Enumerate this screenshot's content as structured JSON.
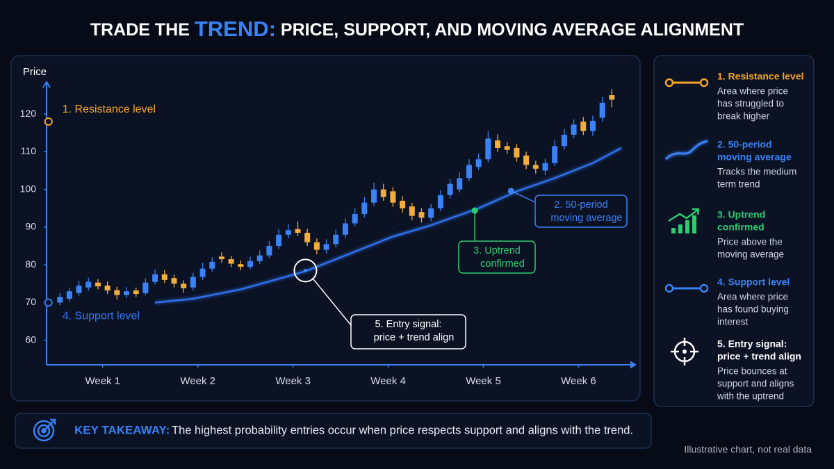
{
  "title": {
    "parts": [
      "TRADE THE ",
      "TREND:",
      " PRICE, SUPPORT, AND MOVING AVERAGE ALIGNMENT"
    ]
  },
  "chart_data": {
    "type": "candlestick",
    "y_label": "Price",
    "x": [
      1,
      2,
      3,
      4,
      5,
      6,
      7,
      8,
      9,
      10,
      11,
      12,
      13,
      14,
      15,
      16,
      17,
      18,
      19,
      20,
      21,
      22,
      23,
      24,
      25,
      26,
      27,
      28,
      29,
      30,
      31,
      32,
      33,
      34,
      35,
      36,
      37,
      38,
      39,
      40,
      41,
      42,
      43,
      44,
      45,
      46,
      47,
      48,
      49,
      50,
      51,
      52,
      53,
      54,
      55,
      56,
      57,
      58,
      59
    ],
    "open": [
      70,
      71,
      72.5,
      74,
      75.3,
      74.5,
      73.3,
      72,
      73.2,
      72.5,
      75.5,
      77.5,
      76.5,
      75,
      74,
      76.8,
      79,
      82.2,
      81.5,
      80.2,
      79.5,
      81,
      82.5,
      85,
      88,
      89.5,
      88.5,
      86,
      84,
      85.5,
      88,
      91,
      93.5,
      96.5,
      100,
      99.5,
      97,
      95.5,
      94,
      92.5,
      95,
      98.5,
      100,
      103,
      106,
      108,
      113,
      111.5,
      111,
      109,
      106.5,
      105,
      107,
      111.5,
      114.5,
      118,
      115.5,
      119,
      125
    ],
    "high": [
      72.5,
      74,
      75.8,
      76.6,
      76.2,
      75.6,
      74.2,
      74.1,
      74,
      76.4,
      78.8,
      78.6,
      77.4,
      75.9,
      77.9,
      80.6,
      82,
      83.3,
      82.4,
      81.2,
      82.2,
      83.8,
      86.3,
      89.5,
      90.8,
      91.5,
      89.6,
      87,
      86.8,
      89.4,
      92.3,
      95,
      98,
      101.8,
      101.5,
      100.6,
      98.2,
      96.4,
      95,
      96.2,
      99.8,
      102.8,
      104.5,
      108,
      109.5,
      115.4,
      114.6,
      112.6,
      112,
      110,
      107.6,
      108.2,
      113,
      116,
      118.6,
      119.2,
      119.6,
      124.5,
      126.6
    ],
    "low": [
      69.3,
      70.2,
      71.8,
      73.2,
      73.5,
      72.3,
      70.8,
      71.2,
      71.5,
      71.9,
      74.8,
      75.2,
      74,
      72.6,
      73.2,
      76,
      78.2,
      80.6,
      79.4,
      78.6,
      78.8,
      80.2,
      81.8,
      84.2,
      87,
      87.6,
      85,
      82.8,
      83,
      84.6,
      87.2,
      90.2,
      92.6,
      95.6,
      97,
      95.4,
      93.8,
      91.8,
      91.2,
      91.6,
      94.2,
      97.6,
      99.2,
      102.2,
      105.2,
      107.2,
      110,
      109.4,
      107.4,
      105.4,
      104.2,
      103.8,
      106.2,
      110.6,
      113.6,
      114.4,
      114.2,
      118,
      121.8
    ],
    "close": [
      71.5,
      73,
      74.5,
      75.5,
      74.3,
      73.2,
      72,
      73,
      72.3,
      75.3,
      77.5,
      76,
      75,
      73.8,
      76.8,
      79,
      80.8,
      81.5,
      80.3,
      79.5,
      81,
      82.5,
      85,
      88,
      89.2,
      88.5,
      86,
      84,
      85.5,
      88,
      91,
      93.5,
      96.5,
      100,
      98,
      96.5,
      95,
      93,
      92.5,
      95,
      98.5,
      101.5,
      103,
      106.5,
      108,
      113.5,
      111,
      110.5,
      108.5,
      106.5,
      105.5,
      107,
      111.5,
      114.5,
      117.2,
      115.5,
      118.2,
      123,
      123.8
    ],
    "up_color": "#3b82f6",
    "down_color": "#f2ad3c",
    "ma": {
      "color": "#2f6fe8",
      "x": [
        11,
        15,
        20,
        25,
        27,
        30,
        33,
        36,
        40,
        45,
        49,
        53,
        57,
        60
      ],
      "values": [
        70,
        71,
        73.5,
        77,
        78.5,
        81.5,
        84.5,
        87.5,
        90.5,
        95,
        99.5,
        103,
        107,
        111
      ]
    },
    "levels": [
      {
        "label": "1. Resistance level",
        "value": 118,
        "color": "#f5a623"
      },
      {
        "label": "4. Support level",
        "value": 70,
        "color": "#2f7cf6"
      }
    ],
    "annotations": [
      {
        "lines": [
          "2. 50-period",
          "moving average"
        ],
        "x": 48.4,
        "y": 99.6,
        "color": "#3b82f6"
      },
      {
        "lines": [
          "3. Uptrend",
          "confirmed"
        ],
        "x": 44.6,
        "y": 94.4,
        "color": "#2ecc71"
      },
      {
        "lines": [
          "5. Entry signal:",
          "price + trend align"
        ],
        "x": 26.8,
        "y": 78.5,
        "color": "#ffffff"
      }
    ],
    "xlim": [
      -0.4,
      60.8
    ],
    "xticks": [
      {
        "value": 5.5,
        "label": "Week 1"
      },
      {
        "value": 15.5,
        "label": "Week 2"
      },
      {
        "value": 25.5,
        "label": "Week 3"
      },
      {
        "value": 35.5,
        "label": "Week 4"
      },
      {
        "value": 45.5,
        "label": "Week 5"
      },
      {
        "value": 55.5,
        "label": "Week 6"
      }
    ],
    "ylim": [
      53.5,
      128.5
    ],
    "yticks": [
      60,
      70,
      80,
      90,
      100,
      110,
      120
    ]
  },
  "legend": {
    "items": [
      {
        "title": [
          "1. Resistance level"
        ],
        "text": [
          "Area where price",
          "has struggled to",
          "break higher"
        ],
        "color": "#f5a623"
      },
      {
        "title": [
          "2. 50-period",
          "moving average"
        ],
        "text": [
          "Tracks the medium",
          "term trend"
        ],
        "color": "#3b82f6"
      },
      {
        "title": [
          "3. Uptrend",
          "confirmed"
        ],
        "text": [
          "Price above the",
          "moving average"
        ],
        "color": "#2ecc71"
      },
      {
        "title": [
          "4. Support level"
        ],
        "text": [
          "Area where price",
          "has found buying",
          "interest"
        ],
        "color": "#3b82f6"
      },
      {
        "title": [
          "5. Entry signal:",
          "price + trend align"
        ],
        "text": [
          "Price bounces at",
          "support and aligns",
          "with the uptrend"
        ],
        "color": "#ffffff"
      }
    ]
  },
  "takeaway": {
    "label": "KEY TAKEAWAY:",
    "text": "The highest probability entries occur when price respects support and aligns with the trend."
  },
  "footnote": "Illustrative chart, not real data"
}
